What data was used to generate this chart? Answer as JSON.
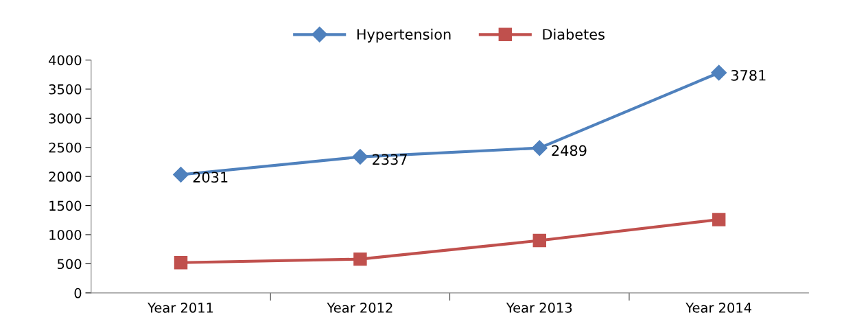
{
  "chart_data": {
    "type": "line",
    "categories": [
      "Year 2011",
      "Year 2012",
      "Year 2013",
      "Year 2014"
    ],
    "series": [
      {
        "name": "Hypertension",
        "color": "#4f81bd",
        "marker": "diamond",
        "values": [
          2031,
          2337,
          2489,
          3781
        ],
        "value_labels": [
          "2031",
          "2337",
          "2489",
          "3781"
        ]
      },
      {
        "name": "Diabetes",
        "color": "#c0504d",
        "marker": "square",
        "values": [
          520,
          580,
          900,
          1260
        ]
      }
    ],
    "ylim": [
      0,
      4000
    ],
    "yticks": [
      0,
      500,
      1000,
      1500,
      2000,
      2500,
      3000,
      3500,
      4000
    ],
    "grid": false,
    "legend": "top"
  }
}
